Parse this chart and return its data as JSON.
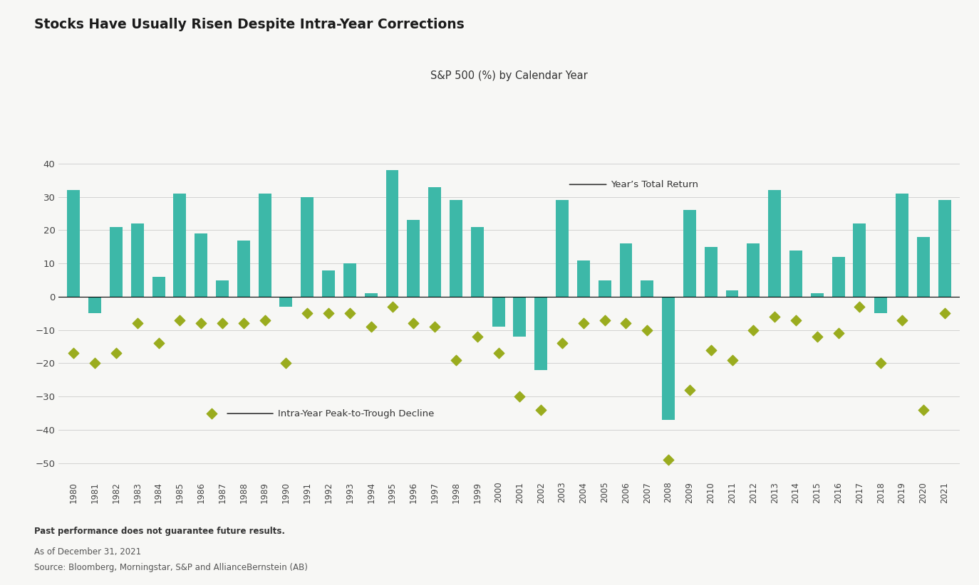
{
  "years": [
    1980,
    1981,
    1982,
    1983,
    1984,
    1985,
    1986,
    1987,
    1988,
    1989,
    1990,
    1991,
    1992,
    1993,
    1994,
    1995,
    1996,
    1997,
    1998,
    1999,
    2000,
    2001,
    2002,
    2003,
    2004,
    2005,
    2006,
    2007,
    2008,
    2009,
    2010,
    2011,
    2012,
    2013,
    2014,
    2015,
    2016,
    2017,
    2018,
    2019,
    2020,
    2021
  ],
  "total_returns": [
    32,
    -5,
    21,
    22,
    6,
    31,
    19,
    5,
    17,
    31,
    -3,
    30,
    8,
    10,
    1,
    38,
    23,
    33,
    29,
    21,
    -9,
    -12,
    -22,
    29,
    11,
    5,
    16,
    5,
    -37,
    26,
    15,
    2,
    16,
    32,
    14,
    1,
    12,
    22,
    -5,
    31,
    18,
    29
  ],
  "intra_year_declines": [
    -17,
    -20,
    -17,
    -8,
    -14,
    -7,
    -8,
    -8,
    -8,
    -7,
    -20,
    -5,
    -5,
    -5,
    -9,
    -3,
    -8,
    -9,
    -19,
    -12,
    -17,
    -30,
    -34,
    -14,
    -8,
    -7,
    -8,
    -10,
    -49,
    -28,
    -16,
    -19,
    -10,
    -6,
    -7,
    -12,
    -11,
    -3,
    -20,
    -7,
    -34,
    -5
  ],
  "bar_color": "#3db8a8",
  "diamond_color": "#9aac1e",
  "line_color": "#333333",
  "bg_color": "#f7f7f5",
  "title": "Stocks Have Usually Risen Despite Intra-Year Corrections",
  "subtitle": "S&P 500 (%) by Calendar Year",
  "ylim_min": -55,
  "ylim_max": 47,
  "yticks": [
    -50,
    -40,
    -30,
    -20,
    -10,
    0,
    10,
    20,
    30,
    40
  ],
  "footer_bold": "Past performance does not guarantee future results.",
  "footer1": "As of December 31, 2021",
  "footer2": "Source: Bloomberg, Morningstar, S&P and AllianceBernstein (AB)",
  "legend_line_label": "Year’s Total Return",
  "legend_diamond_label": "Intra-Year Peak-to-Trough Decline"
}
